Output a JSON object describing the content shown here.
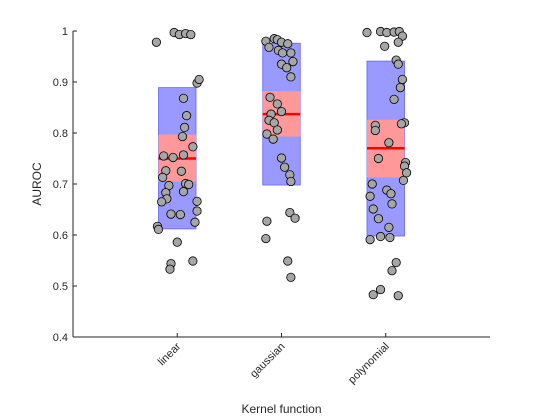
{
  "chart_data": {
    "type": "scatter",
    "subtype": "jittered-dot-plot-with-mean-sd-ci-boxes",
    "xlabel": "Kernel function",
    "ylabel": "AUROC",
    "categories": [
      "linear",
      "gaussian",
      "polynomial"
    ],
    "ylim": [
      0.4,
      1.0
    ],
    "yticks": [
      "0.4",
      "0.5",
      "0.6",
      "0.7",
      "0.8",
      "0.9",
      "1"
    ],
    "grid": false,
    "legend": "none",
    "colors": {
      "sd_box": "#9999ff",
      "ci_box": "#ff9999",
      "mean_line": "#ff0000",
      "points_fill": "#a6a6a6",
      "points_edge": "#000000",
      "axis": "#262626"
    },
    "groups": [
      {
        "name": "linear",
        "mean": 0.75,
        "ci": [
          0.705,
          0.797
        ],
        "sd": [
          0.612,
          0.889
        ],
        "points": [
          {
            "x": 0.8,
            "y": 0.978
          },
          {
            "x": 0.97,
            "y": 0.997
          },
          {
            "x": 1.02,
            "y": 0.993
          },
          {
            "x": 1.08,
            "y": 0.995
          },
          {
            "x": 1.13,
            "y": 0.993
          },
          {
            "x": 1.19,
            "y": 0.898
          },
          {
            "x": 1.21,
            "y": 0.905
          },
          {
            "x": 1.06,
            "y": 0.868
          },
          {
            "x": 1.09,
            "y": 0.834
          },
          {
            "x": 1.07,
            "y": 0.811
          },
          {
            "x": 1.05,
            "y": 0.793
          },
          {
            "x": 0.96,
            "y": 0.752
          },
          {
            "x": 1.15,
            "y": 0.773
          },
          {
            "x": 1.06,
            "y": 0.757
          },
          {
            "x": 0.87,
            "y": 0.755
          },
          {
            "x": 0.89,
            "y": 0.726
          },
          {
            "x": 0.86,
            "y": 0.713
          },
          {
            "x": 0.92,
            "y": 0.697
          },
          {
            "x": 1.04,
            "y": 0.725
          },
          {
            "x": 1.08,
            "y": 0.701
          },
          {
            "x": 0.89,
            "y": 0.683
          },
          {
            "x": 0.9,
            "y": 0.671
          },
          {
            "x": 0.85,
            "y": 0.665
          },
          {
            "x": 1.11,
            "y": 0.699
          },
          {
            "x": 1.06,
            "y": 0.685
          },
          {
            "x": 1.19,
            "y": 0.666
          },
          {
            "x": 1.19,
            "y": 0.647
          },
          {
            "x": 0.94,
            "y": 0.641
          },
          {
            "x": 1.03,
            "y": 0.64
          },
          {
            "x": 0.81,
            "y": 0.617
          },
          {
            "x": 0.82,
            "y": 0.611
          },
          {
            "x": 1.17,
            "y": 0.625
          },
          {
            "x": 1.0,
            "y": 0.586
          },
          {
            "x": 0.94,
            "y": 0.544
          },
          {
            "x": 0.93,
            "y": 0.533
          },
          {
            "x": 1.15,
            "y": 0.549
          }
        ]
      },
      {
        "name": "gaussian",
        "mean": 0.837,
        "ci": [
          0.793,
          0.882
        ],
        "sd": [
          0.698,
          0.976
        ],
        "points": [
          {
            "x": 1.85,
            "y": 0.98
          },
          {
            "x": 1.93,
            "y": 0.985
          },
          {
            "x": 1.96,
            "y": 0.983
          },
          {
            "x": 2.0,
            "y": 0.978
          },
          {
            "x": 2.06,
            "y": 0.975
          },
          {
            "x": 1.88,
            "y": 0.968
          },
          {
            "x": 1.97,
            "y": 0.962
          },
          {
            "x": 2.01,
            "y": 0.957
          },
          {
            "x": 2.09,
            "y": 0.957
          },
          {
            "x": 2.11,
            "y": 0.94
          },
          {
            "x": 2.0,
            "y": 0.935
          },
          {
            "x": 2.05,
            "y": 0.928
          },
          {
            "x": 2.09,
            "y": 0.91
          },
          {
            "x": 1.89,
            "y": 0.87
          },
          {
            "x": 1.96,
            "y": 0.857
          },
          {
            "x": 1.9,
            "y": 0.837
          },
          {
            "x": 2.0,
            "y": 0.842
          },
          {
            "x": 1.88,
            "y": 0.825
          },
          {
            "x": 1.93,
            "y": 0.82
          },
          {
            "x": 1.96,
            "y": 0.806
          },
          {
            "x": 1.86,
            "y": 0.798
          },
          {
            "x": 1.92,
            "y": 0.788
          },
          {
            "x": 2.0,
            "y": 0.751
          },
          {
            "x": 2.03,
            "y": 0.733
          },
          {
            "x": 2.08,
            "y": 0.718
          },
          {
            "x": 2.09,
            "y": 0.705
          },
          {
            "x": 2.08,
            "y": 0.644
          },
          {
            "x": 2.13,
            "y": 0.633
          },
          {
            "x": 1.86,
            "y": 0.627
          },
          {
            "x": 1.85,
            "y": 0.593
          },
          {
            "x": 2.06,
            "y": 0.549
          },
          {
            "x": 2.09,
            "y": 0.517
          }
        ]
      },
      {
        "name": "polynomial",
        "mean": 0.77,
        "ci": [
          0.713,
          0.826
        ],
        "sd": [
          0.598,
          0.941
        ],
        "points": [
          {
            "x": 2.82,
            "y": 0.997
          },
          {
            "x": 2.95,
            "y": 0.999
          },
          {
            "x": 3.01,
            "y": 0.997
          },
          {
            "x": 3.08,
            "y": 0.998
          },
          {
            "x": 3.13,
            "y": 0.999
          },
          {
            "x": 3.16,
            "y": 0.99
          },
          {
            "x": 3.12,
            "y": 0.978
          },
          {
            "x": 2.99,
            "y": 0.97
          },
          {
            "x": 3.1,
            "y": 0.943
          },
          {
            "x": 3.12,
            "y": 0.935
          },
          {
            "x": 3.16,
            "y": 0.905
          },
          {
            "x": 3.14,
            "y": 0.889
          },
          {
            "x": 3.08,
            "y": 0.866
          },
          {
            "x": 3.18,
            "y": 0.82
          },
          {
            "x": 3.15,
            "y": 0.818
          },
          {
            "x": 2.9,
            "y": 0.815
          },
          {
            "x": 2.9,
            "y": 0.805
          },
          {
            "x": 3.03,
            "y": 0.781
          },
          {
            "x": 2.93,
            "y": 0.75
          },
          {
            "x": 3.19,
            "y": 0.742
          },
          {
            "x": 3.18,
            "y": 0.735
          },
          {
            "x": 3.2,
            "y": 0.722
          },
          {
            "x": 3.17,
            "y": 0.707
          },
          {
            "x": 2.87,
            "y": 0.7
          },
          {
            "x": 3.01,
            "y": 0.688
          },
          {
            "x": 3.05,
            "y": 0.681
          },
          {
            "x": 2.85,
            "y": 0.676
          },
          {
            "x": 3.06,
            "y": 0.661
          },
          {
            "x": 2.88,
            "y": 0.651
          },
          {
            "x": 2.93,
            "y": 0.632
          },
          {
            "x": 3.03,
            "y": 0.615
          },
          {
            "x": 2.95,
            "y": 0.597
          },
          {
            "x": 3.04,
            "y": 0.595
          },
          {
            "x": 2.85,
            "y": 0.591
          },
          {
            "x": 3.1,
            "y": 0.546
          },
          {
            "x": 3.06,
            "y": 0.53
          },
          {
            "x": 2.88,
            "y": 0.483
          },
          {
            "x": 2.95,
            "y": 0.493
          },
          {
            "x": 3.12,
            "y": 0.481
          }
        ]
      }
    ]
  }
}
